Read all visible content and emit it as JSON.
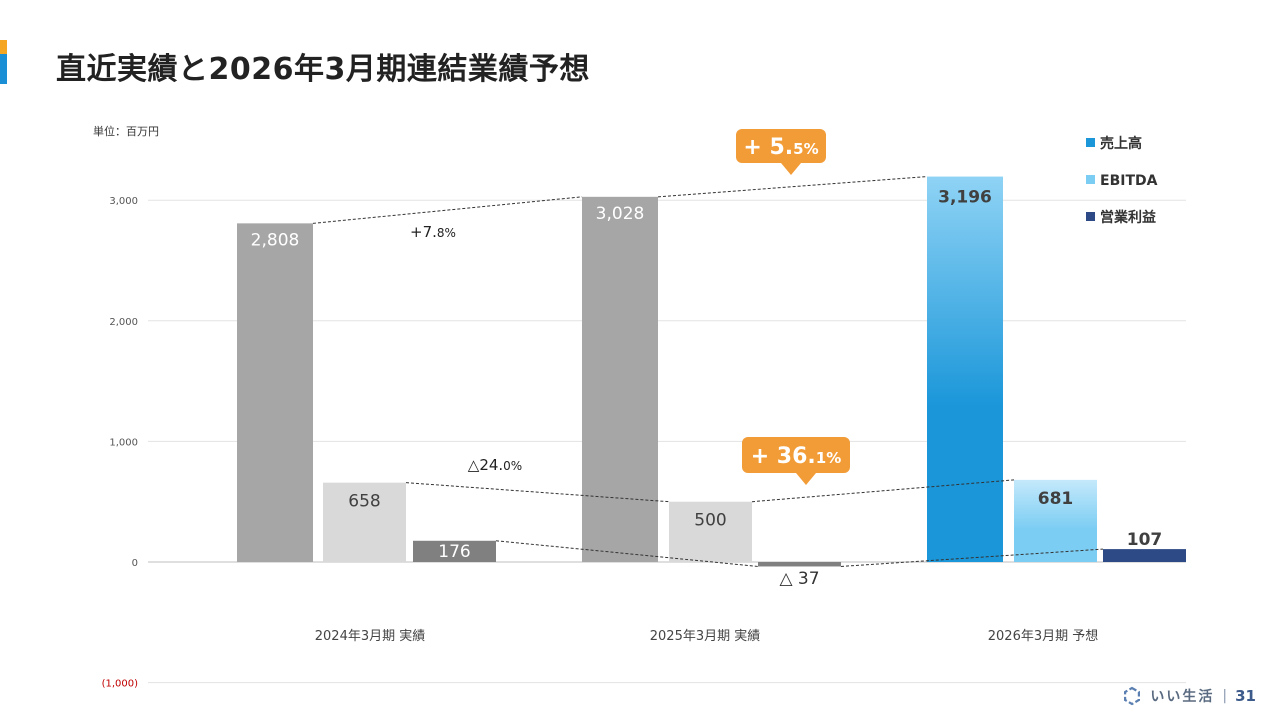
{
  "page": {
    "title": "直近実績と2026年3月期連結業績予想",
    "unit_label": "単位：百万円",
    "footer_brand": "いい生活",
    "footer_sep": "|",
    "page_number": "31"
  },
  "chart_data": {
    "type": "bar",
    "categories": [
      "2024年3月期 実績",
      "2025年3月期 実績",
      "2026年3月期 予想"
    ],
    "ylim": [
      -1000,
      3000
    ],
    "yticks": [
      3000,
      2000,
      1000,
      0,
      -1000
    ],
    "ytick_labels": [
      "3,000",
      "2,000",
      "1,000",
      "0",
      "(1,000)"
    ],
    "series": [
      {
        "name": "売上高",
        "values": [
          2808,
          3028,
          3196
        ],
        "labels": [
          "2,808",
          "3,028",
          "3,196"
        ],
        "colors": [
          "#a6a6a6",
          "#a6a6a6",
          "#1a96d9"
        ]
      },
      {
        "name": "EBITDA",
        "values": [
          658,
          500,
          681
        ],
        "labels": [
          "658",
          "500",
          "681"
        ],
        "colors": [
          "#d9d9d9",
          "#d9d9d9",
          "#7ccdf3"
        ]
      },
      {
        "name": "営業利益",
        "values": [
          176,
          -37,
          107
        ],
        "labels": [
          "176",
          "△ 37",
          "107"
        ],
        "colors": [
          "#808080",
          "#808080",
          "#2e4a86"
        ]
      }
    ],
    "legend": [
      {
        "label": "売上高",
        "color": "#1a96d9"
      },
      {
        "label": "EBITDA",
        "color": "#7ccdf3"
      },
      {
        "label": "営業利益",
        "color": "#2e4a86"
      }
    ],
    "legend_position": "top-right",
    "grid": true,
    "annotations": {
      "sales_change_2025": {
        "main": "+7.",
        "small": "8%"
      },
      "ebitda_change_2025": {
        "main": "△24.",
        "small": "0%"
      },
      "sales_change_2026": {
        "main": "+ 5.",
        "small": "5%"
      },
      "ebitda_change_2026": {
        "main": "+ 36.",
        "small": "1%"
      }
    },
    "badge_color": "#f29c38"
  }
}
